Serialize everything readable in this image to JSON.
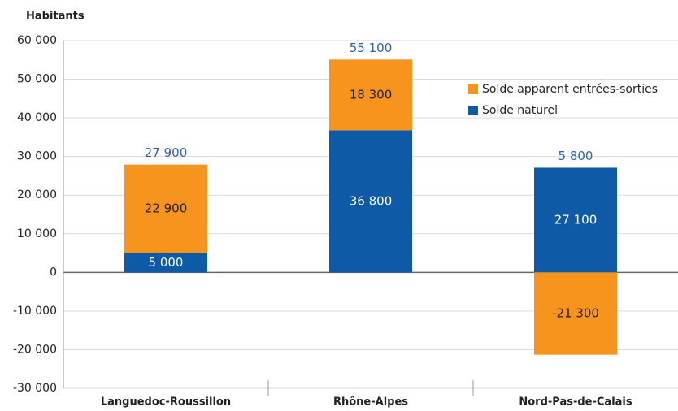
{
  "chart_data": {
    "type": "bar",
    "stacked": true,
    "y_label": "Habitants",
    "categories": [
      "Languedoc-Roussillon",
      "Rhône-Alpes",
      "Nord-Pas-de-Calais"
    ],
    "series": [
      {
        "name": "Solde naturel",
        "color": "#0e5aa7",
        "values": [
          5000,
          36800,
          27100
        ],
        "value_labels": [
          "5 000",
          "36 800",
          "27 100"
        ]
      },
      {
        "name": "Solde apparent entrées-sorties",
        "color": "#f7941d",
        "values": [
          22900,
          18300,
          -21300
        ],
        "value_labels": [
          "22 900",
          "18 300",
          "-21 300"
        ]
      }
    ],
    "totals": [
      "27 900",
      "55 100",
      "5 800"
    ],
    "ylim": [
      -30000,
      60000
    ],
    "yticks": [
      {
        "value": -30000,
        "label": "-30 000"
      },
      {
        "value": -20000,
        "label": "-20 000"
      },
      {
        "value": -10000,
        "label": "-10 000"
      },
      0,
      {
        "value": 10000,
        "label": "10 000"
      },
      {
        "value": 20000,
        "label": "20 000"
      },
      {
        "value": 30000,
        "label": "30 000"
      },
      {
        "value": 40000,
        "label": "40 000"
      },
      {
        "value": 50000,
        "label": "50 000"
      },
      {
        "value": 60000,
        "label": "60 000"
      }
    ],
    "grid": true,
    "legend": "upper right"
  }
}
